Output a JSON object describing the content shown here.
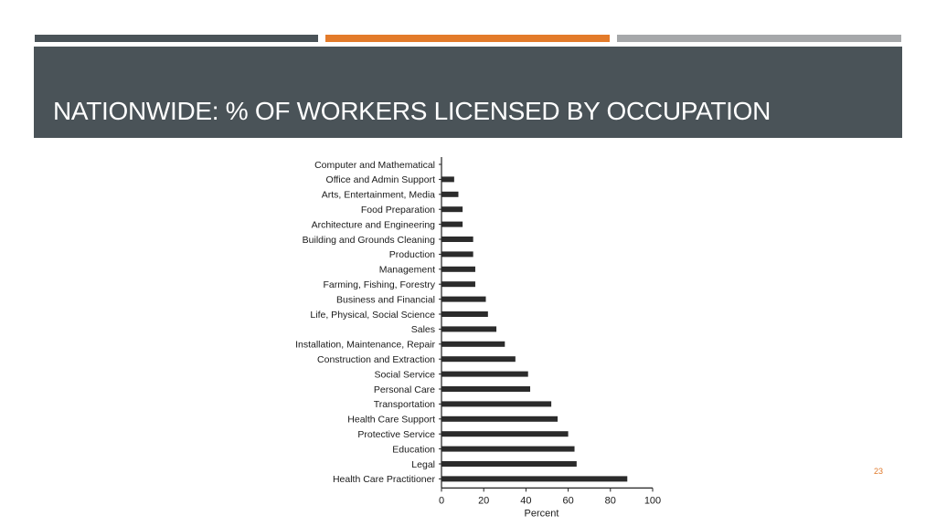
{
  "slide": {
    "title": "NATIONWIDE: % OF WORKERS LICENSED BY OCCUPATION",
    "page_number": "23"
  },
  "colors": {
    "strip_left": "#4a5358",
    "strip_middle": "#e37b2a",
    "strip_right": "#a6a8aa",
    "title_band": "#4a5358",
    "bars": "#2b2b2b",
    "page_number": "#e07a2c"
  },
  "chart_data": {
    "type": "bar",
    "orientation": "horizontal",
    "xlabel": "Percent",
    "ylabel": "",
    "xlim": [
      0,
      100
    ],
    "xticks": [
      0,
      20,
      40,
      60,
      80,
      100
    ],
    "grid": false,
    "categories": [
      "Computer and Mathematical",
      "Office and Admin Support",
      "Arts, Entertainment, Media",
      "Food Preparation",
      "Architecture and Engineering",
      "Building and Grounds Cleaning",
      "Production",
      "Management",
      "Farming, Fishing, Forestry",
      "Business and Financial",
      "Life, Physical, Social Science",
      "Sales",
      "Installation, Maintenance, Repair",
      "Construction and Extraction",
      "Social Service",
      "Personal Care",
      "Transportation",
      "Health Care Support",
      "Protective Service",
      "Education",
      "Legal",
      "Health Care Practitioner"
    ],
    "values": [
      0,
      6,
      8,
      10,
      10,
      15,
      15,
      16,
      16,
      21,
      22,
      26,
      30,
      35,
      41,
      42,
      52,
      55,
      60,
      63,
      64,
      88
    ]
  }
}
